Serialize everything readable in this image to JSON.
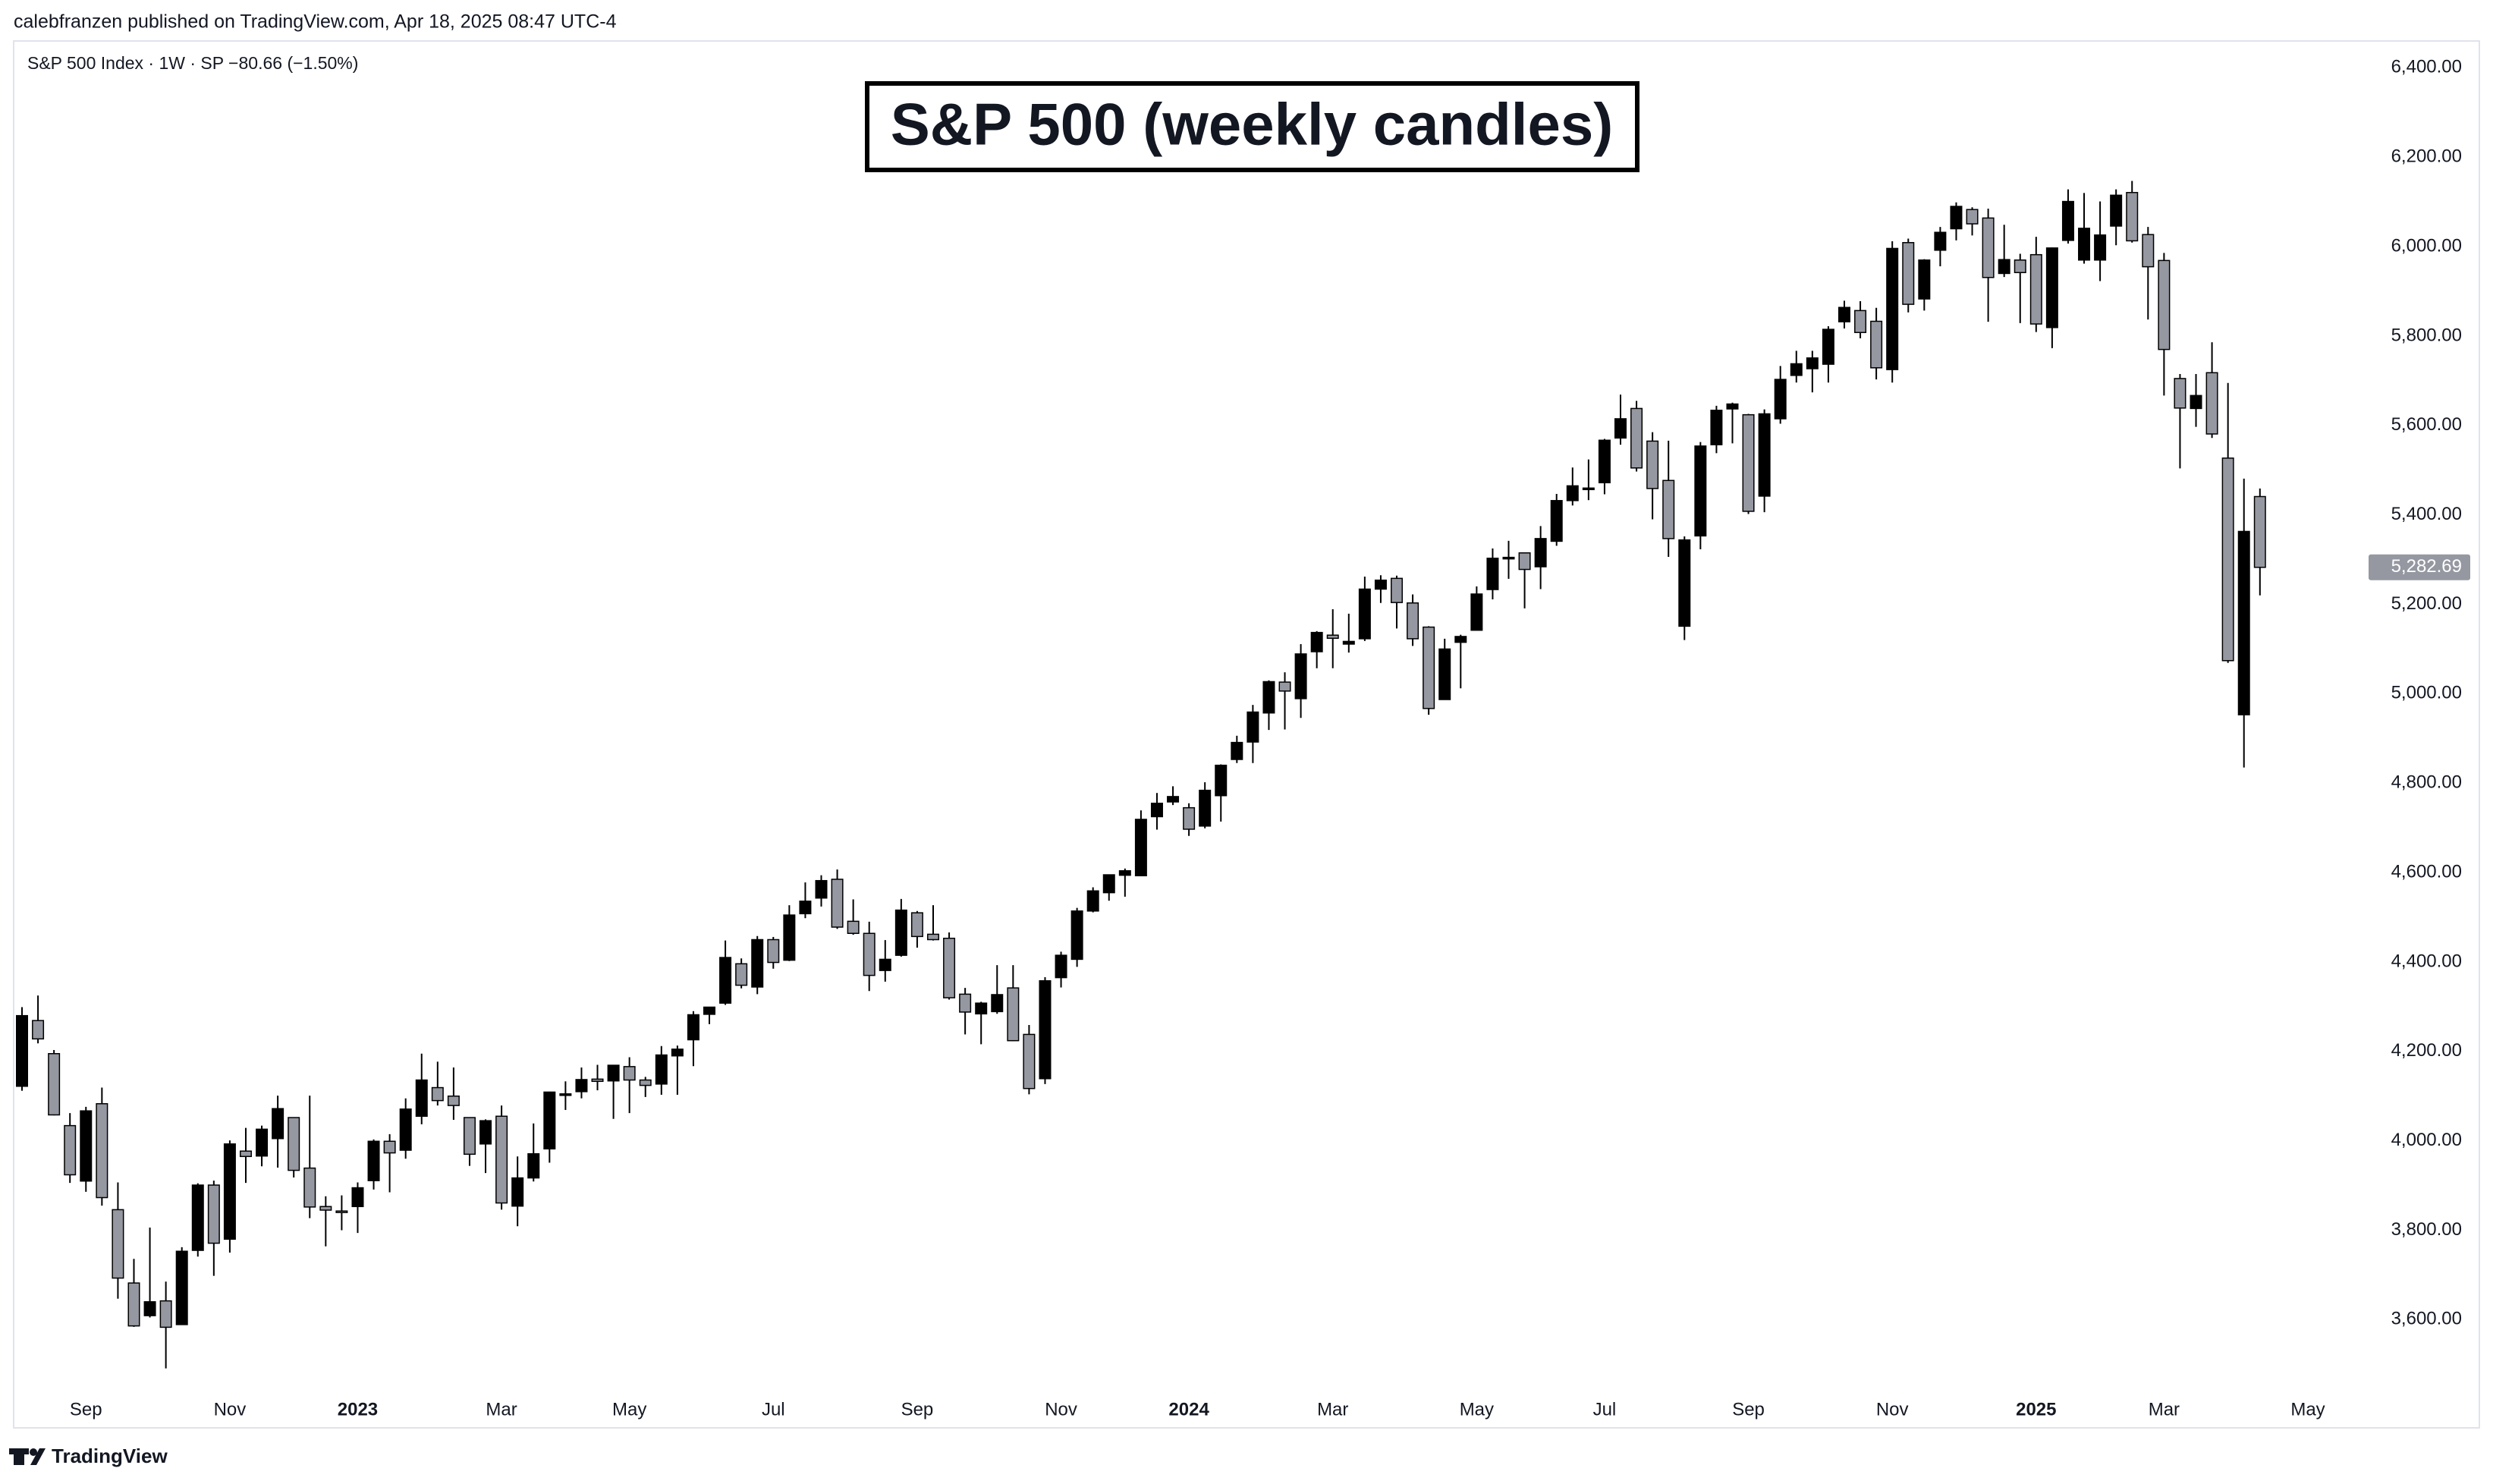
{
  "header": "calebfranzen published on TradingView.com, Apr 18, 2025 08:47 UTC-4",
  "footer": "TradingView",
  "chart_data": {
    "type": "candlestick",
    "title": "S&P 500 (weekly candles)",
    "legend": "S&P 500 Index · 1W · SP  −80.66 (−1.50%)",
    "up_color": "#000000",
    "down_color": "#9598a1",
    "ylim": [
      3358,
      6460
    ],
    "yticks": [
      {
        "value": 3600,
        "label": "3,600.00"
      },
      {
        "value": 3800,
        "label": "3,800.00"
      },
      {
        "value": 4000,
        "label": "4,000.00"
      },
      {
        "value": 4200,
        "label": "4,200.00"
      },
      {
        "value": 4400,
        "label": "4,400.00"
      },
      {
        "value": 4600,
        "label": "4,600.00"
      },
      {
        "value": 4800,
        "label": "4,800.00"
      },
      {
        "value": 5000,
        "label": "5,000.00"
      },
      {
        "value": 5200,
        "label": "5,200.00"
      },
      {
        "value": 5400,
        "label": "5,400.00"
      },
      {
        "value": 5600,
        "label": "5,600.00"
      },
      {
        "value": 5800,
        "label": "5,800.00"
      },
      {
        "value": 6000,
        "label": "6,000.00"
      },
      {
        "value": 6200,
        "label": "6,200.00"
      },
      {
        "value": 6400,
        "label": "6,400.00"
      }
    ],
    "xticks": [
      {
        "value": 4,
        "label": "Sep"
      },
      {
        "value": 13,
        "label": "Nov"
      },
      {
        "value": 21,
        "label": "2023",
        "bold": true
      },
      {
        "value": 30,
        "label": "Mar"
      },
      {
        "value": 38,
        "label": "May"
      },
      {
        "value": 47,
        "label": "Jul"
      },
      {
        "value": 56,
        "label": "Sep"
      },
      {
        "value": 65,
        "label": "Nov"
      },
      {
        "value": 73,
        "label": "2024",
        "bold": true
      },
      {
        "value": 82,
        "label": "Mar"
      },
      {
        "value": 91,
        "label": "May"
      },
      {
        "value": 99,
        "label": "Jul"
      },
      {
        "value": 108,
        "label": "Sep"
      },
      {
        "value": 117,
        "label": "Nov"
      },
      {
        "value": 126,
        "label": "2025",
        "bold": true
      },
      {
        "value": 134,
        "label": "Mar"
      },
      {
        "value": 143,
        "label": "May"
      }
    ],
    "last_price": {
      "value": 5282.69,
      "label": "5,282.69"
    },
    "open": [
      4122,
      4269,
      4195,
      4034,
      3910,
      4083,
      3846,
      3682,
      3609,
      3642,
      3589,
      3755,
      3901,
      3780,
      3977,
      3966,
      4005,
      4052,
      3939,
      3853,
      3843,
      3853,
      3911,
      3999,
      3979,
      4055,
      4119,
      4100,
      4052,
      3993,
      4055,
      3854,
      3917,
      3982,
      4102,
      4110,
      4138,
      4134,
      4166,
      4136,
      4127,
      4190,
      4226,
      4283,
      4308,
      4396,
      4344,
      4450,
      4404,
      4508,
      4543,
      4585,
      4491,
      4464,
      4381,
      4415,
      4510,
      4462,
      4453,
      4328,
      4284,
      4289,
      4342,
      4238,
      4139,
      4365,
      4406,
      4514,
      4555,
      4594,
      4593,
      4725,
      4758,
      4745,
      4704,
      4772,
      4853,
      4892,
      4957,
      5026,
      4989,
      5094,
      5131,
      5111,
      5123,
      5234,
      5258,
      5203,
      5149,
      4987,
      5115,
      5142,
      5233,
      5305,
      5315,
      5284,
      5341,
      5432,
      5460,
      5472,
      5572,
      5638,
      5565,
      5477,
      5151,
      5353,
      5557,
      5637,
      5624,
      5442,
      5615,
      5712,
      5727,
      5737,
      5832,
      5857,
      5833,
      5725,
      6009,
      5883,
      5992,
      6040,
      6083,
      6064,
      5940,
      5970,
      5982,
      5819,
      6014,
      5970,
      5970,
      6046,
      6121,
      6027,
      5969,
      5705,
      5638,
      5718,
      5527,
      4953,
      5441
    ],
    "high": [
      4299,
      4325,
      4203,
      4062,
      4076,
      4119,
      3907,
      3736,
      3806,
      3685,
      3762,
      3905,
      3911,
      4001,
      4029,
      4034,
      4101,
      4052,
      4101,
      3876,
      3878,
      3907,
      4003,
      4015,
      4095,
      4195,
      4177,
      4164,
      4052,
      4048,
      4079,
      3965,
      4039,
      4110,
      4133,
      4164,
      4170,
      4170,
      4187,
      4143,
      4212,
      4213,
      4290,
      4298,
      4448,
      4408,
      4458,
      4456,
      4527,
      4578,
      4594,
      4607,
      4540,
      4490,
      4449,
      4541,
      4514,
      4527,
      4466,
      4342,
      4311,
      4393,
      4393,
      4259,
      4366,
      4423,
      4521,
      4567,
      4595,
      4609,
      4739,
      4778,
      4793,
      4755,
      4802,
      4842,
      4906,
      4975,
      5030,
      5048,
      5111,
      5140,
      5189,
      5179,
      5262,
      5265,
      5264,
      5222,
      5151,
      5123,
      5132,
      5240,
      5325,
      5342,
      5315,
      5375,
      5447,
      5506,
      5524,
      5570,
      5669,
      5655,
      5585,
      5566,
      5352,
      5563,
      5644,
      5651,
      5626,
      5636,
      5733,
      5767,
      5767,
      5822,
      5879,
      5878,
      5863,
      6012,
      6018,
      5972,
      6044,
      6099,
      6088,
      6085,
      6049,
      5984,
      6022,
      5998,
      6128,
      6120,
      6101,
      6128,
      6147,
      6044,
      5986,
      5715,
      5715,
      5786,
      5695,
      5481,
      5459
    ],
    "low": [
      4112,
      4218,
      4057,
      3906,
      3886,
      3855,
      3647,
      3584,
      3605,
      3491,
      3590,
      3741,
      3698,
      3750,
      3906,
      3943,
      3940,
      3918,
      3827,
      3764,
      3800,
      3794,
      3891,
      3885,
      3960,
      4037,
      4079,
      4047,
      3944,
      3928,
      3846,
      3809,
      3909,
      3951,
      4069,
      4095,
      4113,
      4049,
      4062,
      4098,
      4103,
      4103,
      4167,
      4261,
      4304,
      4341,
      4328,
      4385,
      4402,
      4498,
      4524,
      4474,
      4461,
      4335,
      4356,
      4412,
      4432,
      4448,
      4316,
      4238,
      4216,
      4284,
      4223,
      4104,
      4127,
      4343,
      4389,
      4511,
      4537,
      4546,
      4593,
      4696,
      4751,
      4682,
      4699,
      4714,
      4845,
      4845,
      4919,
      4920,
      4946,
      5057,
      5057,
      5092,
      5118,
      5203,
      5146,
      5107,
      4953,
      4987,
      5012,
      5142,
      5211,
      5257,
      5191,
      5234,
      5331,
      5421,
      5433,
      5446,
      5557,
      5497,
      5390,
      5306,
      5120,
      5323,
      5538,
      5560,
      5402,
      5406,
      5604,
      5696,
      5674,
      5696,
      5817,
      5795,
      5703,
      5696,
      5853,
      5857,
      5956,
      6014,
      6025,
      5832,
      5932,
      5829,
      5809,
      5773,
      6007,
      5962,
      5923,
      6003,
      6009,
      5837,
      5667,
      5504,
      5597,
      5572,
      5069,
      4835,
      5220
    ],
    "close": [
      4280,
      4228,
      4058,
      3924,
      4067,
      3873,
      3693,
      3586,
      3640,
      3583,
      3753,
      3901,
      3771,
      3993,
      3965,
      4026,
      4072,
      3934,
      3852,
      3845,
      3840,
      3895,
      3999,
      3973,
      4071,
      4136,
      4090,
      4079,
      3970,
      4045,
      3861,
      3917,
      3971,
      4109,
      4105,
      4137,
      4133,
      4169,
      4136,
      4124,
      4192,
      4205,
      4282,
      4299,
      4410,
      4348,
      4450,
      4399,
      4505,
      4536,
      4582,
      4478,
      4464,
      4370,
      4406,
      4516,
      4457,
      4450,
      4320,
      4288,
      4308,
      4327,
      4224,
      4117,
      4358,
      4415,
      4514,
      4559,
      4595,
      4604,
      4719,
      4755,
      4770,
      4697,
      4784,
      4840,
      4891,
      4959,
      5027,
      5006,
      5089,
      5137,
      5124,
      5117,
      5234,
      5254,
      5204,
      5123,
      4967,
      5100,
      5128,
      5223,
      5303,
      5305,
      5278,
      5347,
      5432,
      5465,
      5460,
      5567,
      5615,
      5505,
      5459,
      5347,
      5344,
      5554,
      5634,
      5648,
      5408,
      5626,
      5703,
      5738,
      5751,
      5815,
      5864,
      5808,
      5729,
      5996,
      5871,
      5970,
      6032,
      6090,
      6051,
      5931,
      5971,
      5942,
      5827,
      5997,
      6101,
      6041,
      6026,
      6115,
      6013,
      5955,
      5770,
      5639,
      5667,
      5581,
      5074,
      5363,
      5282.69
    ]
  }
}
